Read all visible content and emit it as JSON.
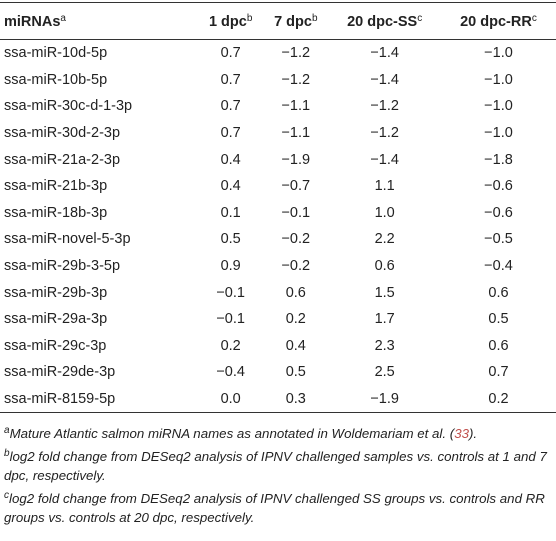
{
  "header": [
    {
      "text": "miRNAs",
      "sup": "a"
    },
    {
      "text": "1 dpc",
      "sup": "b"
    },
    {
      "text": "7 dpc",
      "sup": "b"
    },
    {
      "text": "20 dpc-SS",
      "sup": "c"
    },
    {
      "text": "20 dpc-RR",
      "sup": "c"
    }
  ],
  "rows": [
    [
      "ssa-miR-10d-5p",
      "0.7",
      "−1.2",
      "−1.4",
      "−1.0"
    ],
    [
      "ssa-miR-10b-5p",
      "0.7",
      "−1.2",
      "−1.4",
      "−1.0"
    ],
    [
      "ssa-miR-30c-d-1-3p",
      "0.7",
      "−1.1",
      "−1.2",
      "−1.0"
    ],
    [
      "ssa-miR-30d-2-3p",
      "0.7",
      "−1.1",
      "−1.2",
      "−1.0"
    ],
    [
      "ssa-miR-21a-2-3p",
      "0.4",
      "−1.9",
      "−1.4",
      "−1.8"
    ],
    [
      "ssa-miR-21b-3p",
      "0.4",
      "−0.7",
      "1.1",
      "−0.6"
    ],
    [
      "ssa-miR-18b-3p",
      "0.1",
      "−0.1",
      "1.0",
      "−0.6"
    ],
    [
      "ssa-miR-novel-5-3p",
      "0.5",
      "−0.2",
      "2.2",
      "−0.5"
    ],
    [
      "ssa-miR-29b-3-5p",
      "0.9",
      "−0.2",
      "0.6",
      "−0.4"
    ],
    [
      "ssa-miR-29b-3p",
      "−0.1",
      "0.6",
      "1.5",
      "0.6"
    ],
    [
      "ssa-miR-29a-3p",
      "−0.1",
      "0.2",
      "1.7",
      "0.5"
    ],
    [
      "ssa-miR-29c-3p",
      "0.2",
      "0.4",
      "2.3",
      "0.6"
    ],
    [
      "ssa-miR-29de-3p",
      "−0.4",
      "0.5",
      "2.5",
      "0.7"
    ],
    [
      "ssa-miR-8159-5p",
      "0.0",
      "0.3",
      "−1.9",
      "0.2"
    ]
  ],
  "footnotes": [
    {
      "mark": "a",
      "text": "Mature Atlantic salmon miRNA names as annotated in Woldemariam et al. (",
      "link": "33",
      "tail": ")."
    },
    {
      "mark": "b",
      "text": "log2 fold change from DESeq2 analysis of IPNV challenged samples vs. controls at 1 and 7 dpc, respectively."
    },
    {
      "mark": "c",
      "text": "log2 fold change from DESeq2 analysis of IPNV challenged SS groups vs. controls and RR groups vs. controls at 20 dpc, respectively."
    }
  ]
}
